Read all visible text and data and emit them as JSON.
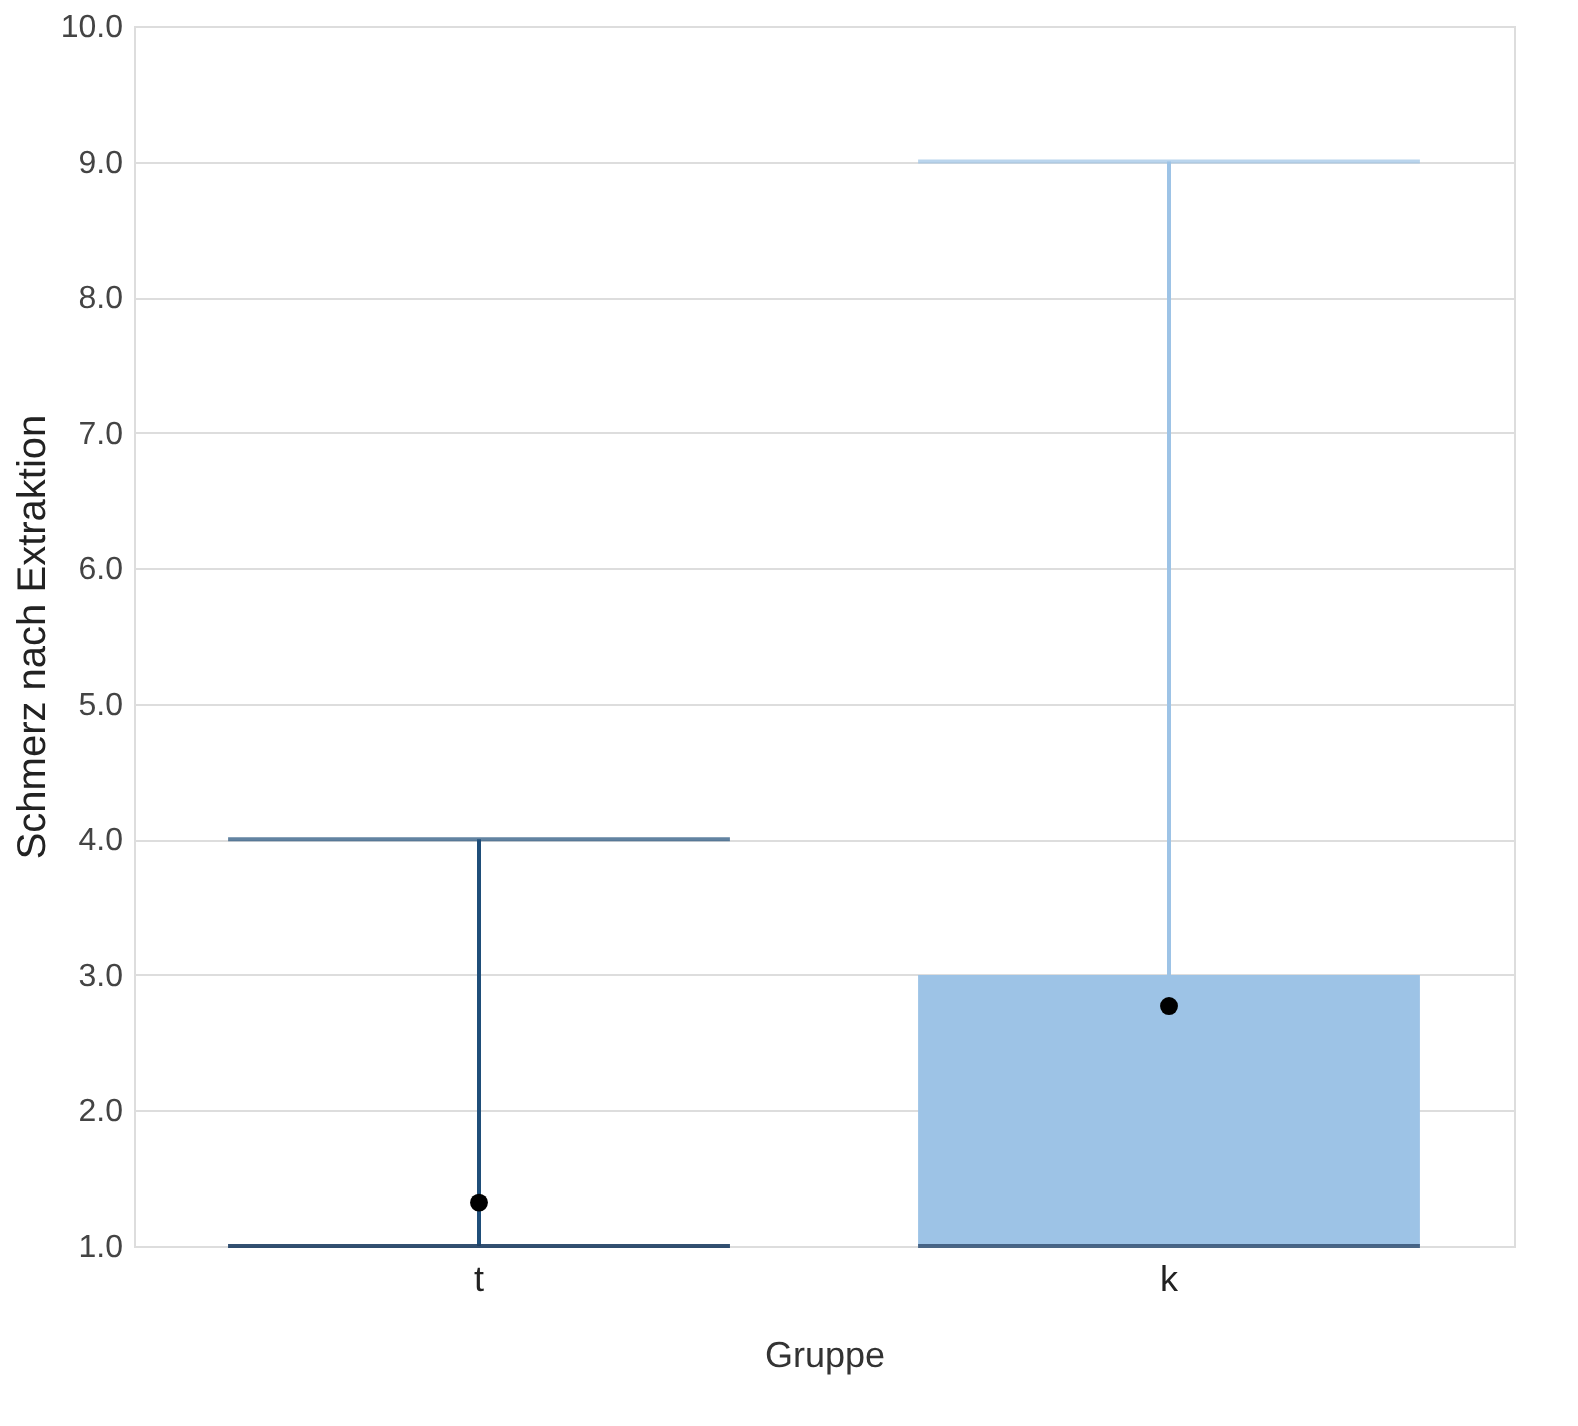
{
  "chart_data": {
    "type": "box",
    "xlabel": "Gruppe",
    "ylabel": "Schmerz nach Extraktion",
    "categories": [
      "t",
      "k"
    ],
    "colors": [
      "#1f4e79",
      "#9dc3e6"
    ],
    "boxes": [
      {
        "low": 1,
        "q1": 1,
        "median": 1,
        "q3": 1,
        "high": 4,
        "mean": 1.32
      },
      {
        "low": 1,
        "q1": 1,
        "median": 1,
        "q3": 3,
        "high": 9,
        "mean": 2.77
      }
    ],
    "ylim": [
      1,
      10
    ],
    "yticks": [
      {
        "value": 1,
        "label": "1.0"
      },
      {
        "value": 2,
        "label": "2.0"
      },
      {
        "value": 3,
        "label": "3.0"
      },
      {
        "value": 4,
        "label": "4.0"
      },
      {
        "value": 5,
        "label": "5.0"
      },
      {
        "value": 6,
        "label": "6.0"
      },
      {
        "value": 7,
        "label": "7.0"
      },
      {
        "value": 8,
        "label": "8.0"
      },
      {
        "value": 9,
        "label": "9.0"
      },
      {
        "value": 10,
        "label": "10.0"
      }
    ],
    "grid": "y",
    "legend": false
  }
}
